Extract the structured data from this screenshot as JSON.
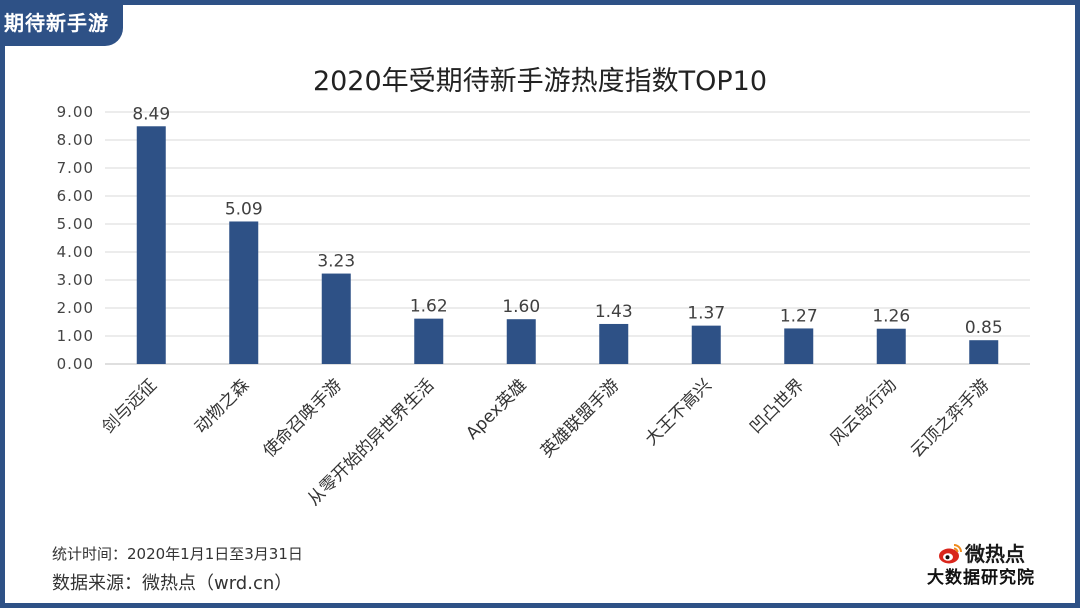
{
  "tag": "期待新手游",
  "chart_data": {
    "type": "bar",
    "title": "2020年受期待新手游热度指数TOP10",
    "categories": [
      "剑与远征",
      "动物之森",
      "使命召唤手游",
      "从零开始的异世界生活",
      "Apex英雄",
      "英雄联盟手游",
      "大王不高兴",
      "凹凸世界",
      "风云岛行动",
      "云顶之弈手游"
    ],
    "values": [
      8.49,
      5.09,
      3.23,
      1.62,
      1.6,
      1.43,
      1.37,
      1.27,
      1.26,
      0.85
    ],
    "value_labels": [
      "8.49",
      "5.09",
      "3.23",
      "1.62",
      "1.60",
      "1.43",
      "1.37",
      "1.27",
      "1.26",
      "0.85"
    ],
    "yticks": [
      "0.00",
      "1.00",
      "2.00",
      "3.00",
      "4.00",
      "5.00",
      "6.00",
      "7.00",
      "8.00",
      "9.00"
    ],
    "ylim": [
      0,
      9
    ],
    "xlabel": "",
    "ylabel": "",
    "grid": true,
    "bar_color": "#2e5186"
  },
  "footer": {
    "time": "统计时间：2020年1月1日至3月31日",
    "source": "数据来源：微热点（wrd.cn）"
  },
  "brand": {
    "name": "微热点",
    "sub": "大数据研究院"
  }
}
